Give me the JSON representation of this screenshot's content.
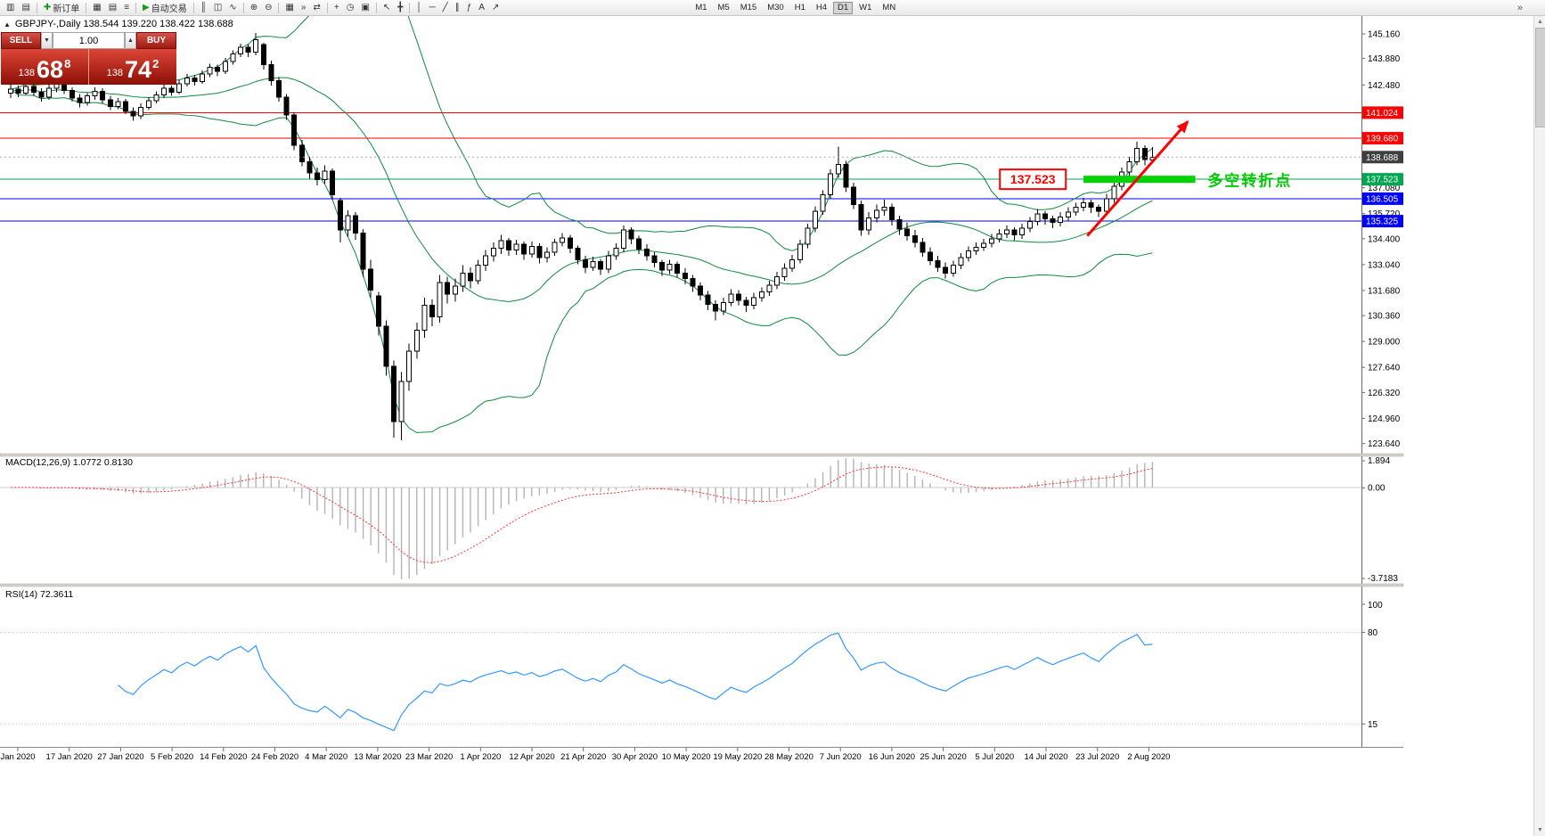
{
  "toolbar": {
    "overflow_glyph": "»",
    "groups": [
      {
        "items": [
          {
            "name": "new-chart-button",
            "glyph": "▥"
          },
          {
            "name": "chart-profiles-button",
            "glyph": "▤"
          }
        ]
      },
      {
        "items": [
          {
            "name": "new-order-button",
            "glyph": "✚",
            "glyph_color": "#1a9a1a",
            "label": "新订单"
          }
        ]
      },
      {
        "items": [
          {
            "name": "market-watch-button",
            "glyph": "▦"
          },
          {
            "name": "data-window-button",
            "glyph": "▤"
          },
          {
            "name": "navigator-button",
            "glyph": "≡"
          }
        ]
      },
      {
        "items": [
          {
            "name": "autotrading-button",
            "glyph": "▶",
            "glyph_color": "#1a9a1a",
            "label": "自动交易"
          }
        ]
      },
      {
        "items": [
          {
            "name": "bar-chart-button",
            "glyph": "║"
          },
          {
            "name": "candlestick-chart-button",
            "glyph": "◫"
          },
          {
            "name": "line-chart-button",
            "glyph": "∿"
          }
        ]
      },
      {
        "items": [
          {
            "name": "zoom-in-button",
            "glyph": "⊕"
          },
          {
            "name": "zoom-out-button",
            "glyph": "⊖"
          }
        ]
      },
      {
        "items": [
          {
            "name": "tile-windows-button",
            "glyph": "▦"
          },
          {
            "name": "auto-scroll-button",
            "glyph": "»"
          },
          {
            "name": "chart-shift-button",
            "glyph": "⇄"
          }
        ]
      },
      {
        "items": [
          {
            "name": "indicators-button",
            "glyph": "+"
          },
          {
            "name": "periods-button",
            "glyph": "◷"
          },
          {
            "name": "templates-button",
            "glyph": "▣"
          }
        ]
      },
      {
        "items": [
          {
            "name": "cursor-button",
            "glyph": "↖"
          },
          {
            "name": "crosshair-button",
            "glyph": "╋"
          }
        ]
      },
      {
        "items": [
          {
            "name": "vertical-line-button",
            "glyph": "│"
          },
          {
            "name": "horizontal-line-button",
            "glyph": "─"
          },
          {
            "name": "trendline-button",
            "glyph": "╱"
          },
          {
            "name": "equidistant-channel-button",
            "glyph": "∥"
          },
          {
            "name": "fibonacci-button",
            "glyph": "ƒ"
          },
          {
            "name": "text-button",
            "glyph": "A"
          },
          {
            "name": "arrow-tools-button",
            "glyph": "↗"
          }
        ]
      }
    ],
    "timeframes": {
      "options": [
        "M1",
        "M5",
        "M15",
        "M30",
        "H1",
        "H4",
        "D1",
        "W1",
        "MN"
      ],
      "active": "D1"
    }
  },
  "scrollbar": {
    "up_glyph": "▲",
    "down_glyph": "▼"
  },
  "chart": {
    "symbol_title": "GBPJPY-,Daily 138.544 139.220 138.422 138.688"
  },
  "trade_panel": {
    "collapse_glyph": "▲",
    "sell_label": "SELL",
    "buy_label": "BUY",
    "volume": "1.00",
    "vol_down_glyph": "▼",
    "vol_up_glyph": "▲",
    "bid": {
      "prefix": "138",
      "pips": "68",
      "point": "8"
    },
    "ask": {
      "prefix": "138",
      "pips": "74",
      "point": "2"
    }
  },
  "chart_data": {
    "type": "candlestick",
    "symbol": "GBPJPY-",
    "timeframe": "Daily",
    "current_bar": {
      "open": 138.544,
      "high": 139.22,
      "low": 138.422,
      "close": 138.688
    },
    "ylim": [
      123.2,
      146.1
    ],
    "dates": [
      "Jan 2020",
      "17 Jan 2020",
      "27 Jan 2020",
      "5 Feb 2020",
      "14 Feb 2020",
      "24 Feb 2020",
      "4 Mar 2020",
      "13 Mar 2020",
      "23 Mar 2020",
      "1 Apr 2020",
      "12 Apr 2020",
      "21 Apr 2020",
      "30 Apr 2020",
      "10 May 2020",
      "19 May 2020",
      "28 May 2020",
      "7 Jun 2020",
      "16 Jun 2020",
      "25 Jun 2020",
      "5 Jul 2020",
      "14 Jul 2020",
      "23 Jul 2020",
      "2 Aug 2020"
    ],
    "price_axis": [
      145.16,
      143.88,
      142.48,
      137.08,
      135.72,
      134.4,
      133.04,
      131.68,
      130.36,
      129.0,
      127.64,
      126.32,
      124.96,
      123.64
    ],
    "hlines": [
      {
        "price": 141.024,
        "label": "141.024",
        "color": "#ff0000"
      },
      {
        "price": 139.68,
        "label": "139.680",
        "color": "#ff0000"
      },
      {
        "price": 137.523,
        "label": "137.523",
        "color": "#00a651"
      },
      {
        "price": 136.505,
        "label": "136.505",
        "color": "#0000ff"
      },
      {
        "price": 135.325,
        "label": "135.325",
        "color": "#0000ff"
      }
    ],
    "current_price": {
      "price": 138.688,
      "label": "138.688",
      "tag_color": "#3f3f3f",
      "line_color": "#aaaaaa"
    },
    "indicators": {
      "bollinger": {
        "period": 20,
        "deviation": 2,
        "color": "#0f8a3c"
      },
      "macd": {
        "label": "MACD(12,26,9) 1.0772 0.8130",
        "fast": 12,
        "slow": 26,
        "signal": 9,
        "value": 1.0772,
        "signal_value": 0.813,
        "axis_labels": [
          "1.894",
          "0.00",
          "-3.7183"
        ],
        "histogram_color": "#b4b4b4",
        "signal_color": "#ff3333"
      },
      "rsi": {
        "label": "RSI(14) 72.3611",
        "period": 14,
        "value": 72.3611,
        "axis_labels": [
          "100",
          "80",
          "15"
        ],
        "levels": [
          80,
          15
        ],
        "color": "#3399ff"
      }
    },
    "annotations": {
      "price_label_box": {
        "text": "137.523",
        "color": "#ff0000",
        "price": 137.523,
        "anchor_idx": 137.7
      },
      "zone_bar": {
        "x1_idx": 140.0,
        "x2_idx": 154.6,
        "price": 137.523,
        "thickness": 8,
        "color": "#00d500"
      },
      "zone_text": {
        "text": "多空转折点",
        "color": "#00cc00",
        "x_idx": 156.2,
        "price": 137.45
      },
      "trend_arrow": {
        "x1_idx": 140.5,
        "price1": 134.55,
        "x2_idx": 153.6,
        "price2": 140.55,
        "color": "#ff0000",
        "width": 3
      }
    },
    "ohlc": [
      [
        142.05,
        142.5,
        141.8,
        142.25
      ],
      [
        142.25,
        142.45,
        141.85,
        142.05
      ],
      [
        142.05,
        142.6,
        141.95,
        142.4
      ],
      [
        142.4,
        142.55,
        141.9,
        142.1
      ],
      [
        142.1,
        142.3,
        141.6,
        141.85
      ],
      [
        141.85,
        142.5,
        141.7,
        142.3
      ],
      [
        142.3,
        142.75,
        142.1,
        142.55
      ],
      [
        142.55,
        142.7,
        142.0,
        142.2
      ],
      [
        142.2,
        142.35,
        141.6,
        141.8
      ],
      [
        141.8,
        142.0,
        141.3,
        141.55
      ],
      [
        141.55,
        142.05,
        141.4,
        141.9
      ],
      [
        141.9,
        142.35,
        141.7,
        142.15
      ],
      [
        142.15,
        142.3,
        141.5,
        141.7
      ],
      [
        141.7,
        141.9,
        141.15,
        141.35
      ],
      [
        141.35,
        141.8,
        141.2,
        141.6
      ],
      [
        141.6,
        141.75,
        140.95,
        141.1
      ],
      [
        141.1,
        141.3,
        140.6,
        140.85
      ],
      [
        140.85,
        141.5,
        140.7,
        141.3
      ],
      [
        141.3,
        141.85,
        141.15,
        141.65
      ],
      [
        141.65,
        142.15,
        141.5,
        141.95
      ],
      [
        141.95,
        142.5,
        141.8,
        142.3
      ],
      [
        142.3,
        142.45,
        141.9,
        142.1
      ],
      [
        142.1,
        142.75,
        142.0,
        142.55
      ],
      [
        142.55,
        143.05,
        142.4,
        142.85
      ],
      [
        142.85,
        143.0,
        142.45,
        142.65
      ],
      [
        142.65,
        143.25,
        142.55,
        143.05
      ],
      [
        143.05,
        143.6,
        142.9,
        143.4
      ],
      [
        143.4,
        143.55,
        142.95,
        143.2
      ],
      [
        143.2,
        143.9,
        143.05,
        143.7
      ],
      [
        143.7,
        144.3,
        143.55,
        144.1
      ],
      [
        144.1,
        144.65,
        143.95,
        144.45
      ],
      [
        144.45,
        144.6,
        143.95,
        144.2
      ],
      [
        144.2,
        145.2,
        144.05,
        144.85
      ],
      [
        144.6,
        144.7,
        143.3,
        143.55
      ],
      [
        143.55,
        143.75,
        142.45,
        142.7
      ],
      [
        142.7,
        142.9,
        141.6,
        141.85
      ],
      [
        141.85,
        142.0,
        140.65,
        140.9
      ],
      [
        140.9,
        141.05,
        139.05,
        139.3
      ],
      [
        139.3,
        139.6,
        138.2,
        138.45
      ],
      [
        138.45,
        138.7,
        137.55,
        137.85
      ],
      [
        137.85,
        138.15,
        137.2,
        137.5
      ],
      [
        137.5,
        138.25,
        137.3,
        137.95
      ],
      [
        137.95,
        138.1,
        136.45,
        136.7
      ],
      [
        136.4,
        136.55,
        134.2,
        134.85
      ],
      [
        134.85,
        135.9,
        134.5,
        135.6
      ],
      [
        135.6,
        135.8,
        134.35,
        134.7
      ],
      [
        134.7,
        134.9,
        132.4,
        132.8
      ],
      [
        132.8,
        133.3,
        131.3,
        131.7
      ],
      [
        131.4,
        131.6,
        129.3,
        129.8
      ],
      [
        129.8,
        130.1,
        127.2,
        127.7
      ],
      [
        127.7,
        128.0,
        123.95,
        124.8
      ],
      [
        124.8,
        127.4,
        123.8,
        126.9
      ],
      [
        126.9,
        128.9,
        126.4,
        128.5
      ],
      [
        128.5,
        130.0,
        128.1,
        129.6
      ],
      [
        129.6,
        131.3,
        129.2,
        130.9
      ],
      [
        130.9,
        131.2,
        129.8,
        130.3
      ],
      [
        130.3,
        132.5,
        130.0,
        132.1
      ],
      [
        132.1,
        132.4,
        131.0,
        131.5
      ],
      [
        131.5,
        132.3,
        131.1,
        131.9
      ],
      [
        131.9,
        133.0,
        131.6,
        132.6
      ],
      [
        132.6,
        132.9,
        131.8,
        132.2
      ],
      [
        132.2,
        133.3,
        132.0,
        133.0
      ],
      [
        133.0,
        133.8,
        132.7,
        133.5
      ],
      [
        133.5,
        134.2,
        133.2,
        133.9
      ],
      [
        133.9,
        134.6,
        133.6,
        134.3
      ],
      [
        134.3,
        134.45,
        133.5,
        133.8
      ],
      [
        133.8,
        134.35,
        133.55,
        134.1
      ],
      [
        134.1,
        134.25,
        133.3,
        133.6
      ],
      [
        133.6,
        134.25,
        133.4,
        134.0
      ],
      [
        134.0,
        134.15,
        133.1,
        133.4
      ],
      [
        133.4,
        133.95,
        133.15,
        133.7
      ],
      [
        133.7,
        134.4,
        133.5,
        134.2
      ],
      [
        134.2,
        134.7,
        134.0,
        134.45
      ],
      [
        134.45,
        134.6,
        133.65,
        133.9
      ],
      [
        133.9,
        134.05,
        133.05,
        133.3
      ],
      [
        133.3,
        133.5,
        132.6,
        132.9
      ],
      [
        132.9,
        133.45,
        132.7,
        133.2
      ],
      [
        133.2,
        133.35,
        132.5,
        132.8
      ],
      [
        132.8,
        133.75,
        132.6,
        133.5
      ],
      [
        133.5,
        134.15,
        133.3,
        133.9
      ],
      [
        133.9,
        135.1,
        133.7,
        134.85
      ],
      [
        134.85,
        135.0,
        134.1,
        134.4
      ],
      [
        134.4,
        134.55,
        133.6,
        133.85
      ],
      [
        133.85,
        134.1,
        133.25,
        133.5
      ],
      [
        133.5,
        133.7,
        132.9,
        133.15
      ],
      [
        133.15,
        133.3,
        132.45,
        132.75
      ],
      [
        132.75,
        133.3,
        132.55,
        133.05
      ],
      [
        133.05,
        133.2,
        132.35,
        132.6
      ],
      [
        132.6,
        132.85,
        132.0,
        132.3
      ],
      [
        132.3,
        132.5,
        131.6,
        131.9
      ],
      [
        131.9,
        132.1,
        131.15,
        131.45
      ],
      [
        131.45,
        131.65,
        130.65,
        130.95
      ],
      [
        130.95,
        131.15,
        130.1,
        130.6
      ],
      [
        130.6,
        131.3,
        130.4,
        131.05
      ],
      [
        131.05,
        131.75,
        130.85,
        131.5
      ],
      [
        131.5,
        131.7,
        130.9,
        131.15
      ],
      [
        131.15,
        131.35,
        130.55,
        130.9
      ],
      [
        130.9,
        131.55,
        130.7,
        131.3
      ],
      [
        131.3,
        131.85,
        131.1,
        131.6
      ],
      [
        131.6,
        132.2,
        131.4,
        131.95
      ],
      [
        131.95,
        132.65,
        131.75,
        132.4
      ],
      [
        132.4,
        133.1,
        132.2,
        132.85
      ],
      [
        132.85,
        133.55,
        132.65,
        133.3
      ],
      [
        133.3,
        134.35,
        133.1,
        134.1
      ],
      [
        134.1,
        135.2,
        133.9,
        134.95
      ],
      [
        134.95,
        136.1,
        134.75,
        135.85
      ],
      [
        135.85,
        136.95,
        135.65,
        136.7
      ],
      [
        136.7,
        138.05,
        136.5,
        137.8
      ],
      [
        137.8,
        139.25,
        137.6,
        138.3
      ],
      [
        138.3,
        138.5,
        136.85,
        137.1
      ],
      [
        137.1,
        137.35,
        135.95,
        136.2
      ],
      [
        136.2,
        136.4,
        134.55,
        134.85
      ],
      [
        134.85,
        135.8,
        134.6,
        135.5
      ],
      [
        135.5,
        136.2,
        135.25,
        135.9
      ],
      [
        135.9,
        136.45,
        135.6,
        136.05
      ],
      [
        136.05,
        136.25,
        135.1,
        135.4
      ],
      [
        135.4,
        135.6,
        134.6,
        134.9
      ],
      [
        134.9,
        135.25,
        134.3,
        134.55
      ],
      [
        134.55,
        134.85,
        133.95,
        134.2
      ],
      [
        134.2,
        134.45,
        133.45,
        133.7
      ],
      [
        133.7,
        133.95,
        133.0,
        133.25
      ],
      [
        133.25,
        133.5,
        132.65,
        132.9
      ],
      [
        132.9,
        133.15,
        132.3,
        132.6
      ],
      [
        132.6,
        133.25,
        132.4,
        133.0
      ],
      [
        133.0,
        133.65,
        132.8,
        133.4
      ],
      [
        133.4,
        134.0,
        133.2,
        133.75
      ],
      [
        133.75,
        134.2,
        133.55,
        133.95
      ],
      [
        133.95,
        134.4,
        133.75,
        134.15
      ],
      [
        134.15,
        134.65,
        133.95,
        134.4
      ],
      [
        134.4,
        134.9,
        134.2,
        134.65
      ],
      [
        134.65,
        135.1,
        134.45,
        134.85
      ],
      [
        134.85,
        135.0,
        134.3,
        134.6
      ],
      [
        134.6,
        135.2,
        134.4,
        134.95
      ],
      [
        134.95,
        135.55,
        134.75,
        135.3
      ],
      [
        135.3,
        135.95,
        135.1,
        135.7
      ],
      [
        135.7,
        135.85,
        135.15,
        135.45
      ],
      [
        135.45,
        135.6,
        134.95,
        135.25
      ],
      [
        135.25,
        135.8,
        135.05,
        135.55
      ],
      [
        135.55,
        136.05,
        135.35,
        135.8
      ],
      [
        135.8,
        136.3,
        135.6,
        136.05
      ],
      [
        136.05,
        136.55,
        135.85,
        136.3
      ],
      [
        136.3,
        136.45,
        135.75,
        136.05
      ],
      [
        136.05,
        136.2,
        135.55,
        135.85
      ],
      [
        135.85,
        136.75,
        135.65,
        136.5
      ],
      [
        136.5,
        137.4,
        136.3,
        137.15
      ],
      [
        137.15,
        138.15,
        136.95,
        137.9
      ],
      [
        137.9,
        138.7,
        137.7,
        138.45
      ],
      [
        138.45,
        139.5,
        138.25,
        139.15
      ],
      [
        139.15,
        139.3,
        138.25,
        138.55
      ],
      [
        138.544,
        139.22,
        138.422,
        138.688
      ]
    ]
  }
}
